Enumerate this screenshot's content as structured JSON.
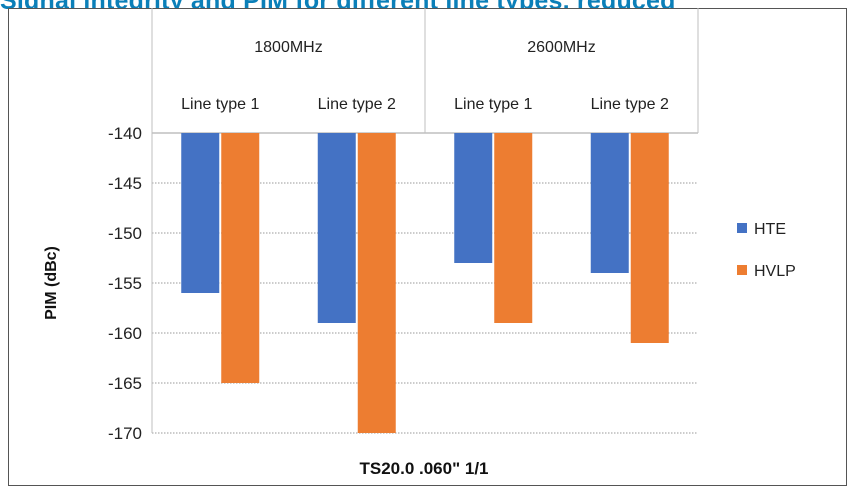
{
  "header": {
    "title": "Signal integrity and PIM for different line types, reduced"
  },
  "chart_data": {
    "type": "bar",
    "title": "",
    "xlabel": "TS20.0 .060\" 1/1",
    "ylabel": "PIM (dBc)",
    "ylim": [
      -170,
      -140
    ],
    "yticks": [
      -140,
      -145,
      -150,
      -155,
      -160,
      -165,
      -170
    ],
    "groups": [
      {
        "label": "1800MHz",
        "categories": [
          "Line type 1",
          "Line type 2"
        ]
      },
      {
        "label": "2600MHz",
        "categories": [
          "Line type 1",
          "Line type 2"
        ]
      }
    ],
    "categories": [
      "Line type 1",
      "Line type 2",
      "Line type 1",
      "Line type 2"
    ],
    "series": [
      {
        "name": "HTE",
        "color": "#4472c4",
        "values": [
          -156,
          -159,
          -153,
          -154
        ]
      },
      {
        "name": "HVLP",
        "color": "#ed7d31",
        "values": [
          -165,
          -170,
          -159,
          -161
        ]
      }
    ],
    "grid": true,
    "legend": "right"
  }
}
